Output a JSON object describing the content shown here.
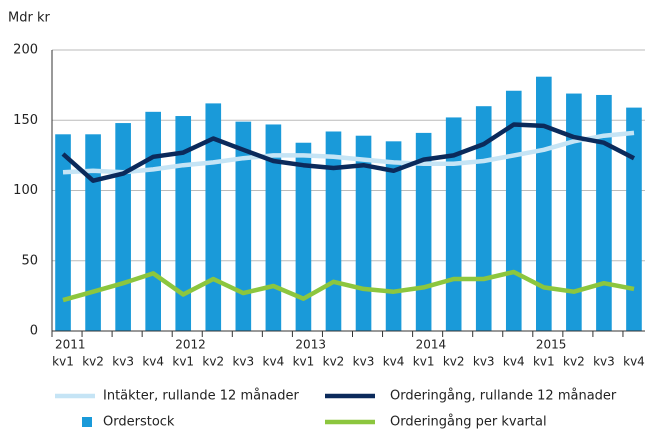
{
  "chart_data": {
    "type": "bar",
    "y_axis_label": "Mdr kr",
    "categories": [
      "kv1",
      "kv2",
      "kv3",
      "kv4",
      "kv1",
      "kv2",
      "kv3",
      "kv4",
      "kv1",
      "kv2",
      "kv3",
      "kv4",
      "kv1",
      "kv2",
      "kv3",
      "kv4",
      "kv1",
      "kv2",
      "kv3",
      "kv4"
    ],
    "groups": [
      "2011",
      "2012",
      "2013",
      "2014",
      "2015"
    ],
    "series": [
      {
        "name": "Orderstock",
        "type": "bar",
        "color": "#1a9ad9",
        "values": [
          140,
          140,
          148,
          156,
          153,
          162,
          149,
          147,
          134,
          142,
          139,
          135,
          141,
          152,
          160,
          171,
          181,
          169,
          168,
          159
        ]
      },
      {
        "name": "Intäkter, rullande 12 månader",
        "type": "line",
        "color": "#c5e4f5",
        "values": [
          113,
          114,
          113,
          115,
          118,
          120,
          123,
          125,
          125,
          124,
          122,
          120,
          119,
          119,
          121,
          125,
          129,
          135,
          139,
          141
        ]
      },
      {
        "name": "Orderingång, rullande 12 månader",
        "type": "line",
        "color": "#0b2a5b",
        "values": [
          126,
          107,
          112,
          124,
          127,
          137,
          129,
          121,
          118,
          116,
          118,
          114,
          122,
          125,
          133,
          147,
          146,
          138,
          134,
          123
        ]
      },
      {
        "name": "Orderingång per kvartal",
        "type": "line",
        "color": "#8cc63e",
        "values": [
          22,
          28,
          34,
          41,
          26,
          37,
          27,
          32,
          23,
          35,
          30,
          28,
          31,
          37,
          37,
          42,
          31,
          28,
          34,
          30
        ]
      }
    ],
    "ylim": [
      0,
      200
    ],
    "yticks": [
      0,
      50,
      100,
      150,
      200
    ],
    "grid": true
  }
}
